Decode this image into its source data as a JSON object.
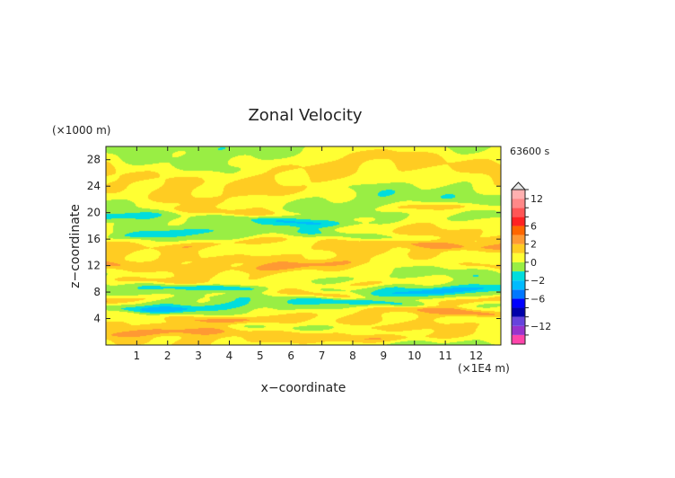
{
  "chart_data": {
    "type": "heatmap",
    "title": "Zonal Velocity",
    "xlabel": "x−coordinate",
    "ylabel": "z−coordinate",
    "x_unit": "(×1E4 m)",
    "y_unit": "(×1000 m)",
    "time_label": "63600 s",
    "xlim": [
      0,
      12.8
    ],
    "ylim": [
      0,
      30
    ],
    "x_ticks": [
      "1",
      "2",
      "3",
      "4",
      "5",
      "6",
      "7",
      "8",
      "9",
      "10",
      "11",
      "12"
    ],
    "y_ticks": [
      "4",
      "8",
      "12",
      "16",
      "20",
      "24",
      "28"
    ],
    "colorbar": {
      "tick_labels": [
        "12",
        "6",
        "2",
        "0",
        "−2",
        "−6",
        "−12"
      ],
      "levels": [
        -14,
        -12,
        -10,
        -8,
        -6,
        -4,
        -2,
        -1,
        0,
        1,
        2,
        4,
        6,
        8,
        10,
        12,
        14
      ],
      "colors": [
        "#ff44aa",
        "#9933cc",
        "#6644dd",
        "#0000aa",
        "#0000ff",
        "#0077ff",
        "#00bbff",
        "#00dddd",
        "#99ee44",
        "#ffff33",
        "#ffcc22",
        "#ff9933",
        "#ff6600",
        "#ff2222",
        "#ff5555",
        "#ff8888",
        "#ffb0b0"
      ],
      "extend": "both"
    },
    "bands": [
      {
        "z": 1.5,
        "v": 1.6,
        "amp": 0.6
      },
      {
        "z": 3.3,
        "v": -1.3,
        "amp": 0.8
      },
      {
        "z": 4.6,
        "v": 2.2,
        "amp": 0.9
      },
      {
        "z": 6.0,
        "v": -2.2,
        "amp": 0.7
      },
      {
        "z": 7.3,
        "v": 2.6,
        "amp": 0.8
      },
      {
        "z": 8.2,
        "v": -2.3,
        "amp": 0.6
      },
      {
        "z": 9.3,
        "v": 1.6,
        "amp": 0.6
      },
      {
        "z": 12.0,
        "v": 1.3,
        "amp": 0.6
      },
      {
        "z": 15.4,
        "v": 1.7,
        "amp": 0.7
      },
      {
        "z": 16.7,
        "v": -1.4,
        "amp": 0.6
      },
      {
        "z": 19.0,
        "v": -1.6,
        "amp": 0.7
      },
      {
        "z": 20.4,
        "v": 1.5,
        "amp": 0.6
      }
    ]
  }
}
